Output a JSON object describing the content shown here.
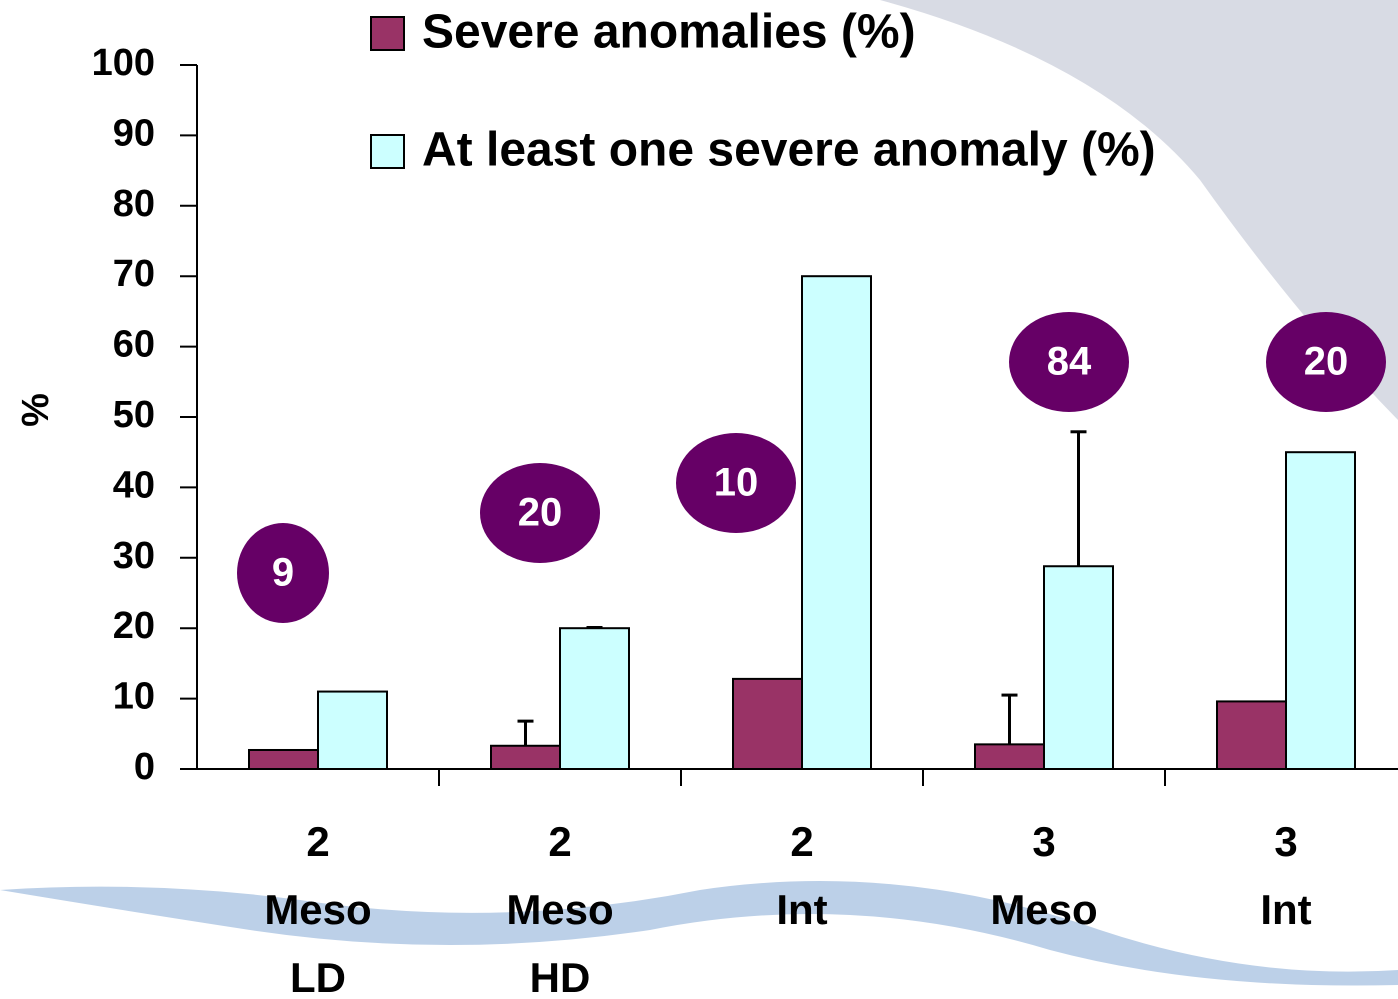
{
  "chart_data": {
    "type": "bar",
    "y_label": "%",
    "categories": [
      [
        "2",
        "Meso",
        "LD"
      ],
      [
        "2",
        "Meso",
        "HD"
      ],
      [
        "2",
        "Int"
      ],
      [
        "3",
        "Meso"
      ],
      [
        "3",
        "Int"
      ]
    ],
    "series": [
      {
        "name": "Severe anomalies (%)",
        "color": "#993366",
        "values": [
          2.7,
          3.3,
          12.8,
          3.5,
          9.6
        ],
        "errors": [
          null,
          3.5,
          null,
          7,
          null
        ]
      },
      {
        "name": "At least one severe anomaly (%)",
        "color": "#ccffff",
        "values": [
          11,
          20,
          70,
          28.8,
          45
        ],
        "errors": [
          null,
          0.1,
          null,
          19.1,
          null
        ]
      }
    ],
    "bubble_labels": [
      "9",
      "20",
      "10",
      "84",
      "20"
    ],
    "bubble_color": "#660066",
    "ylim": [
      0,
      100
    ],
    "yticks": [
      0,
      10,
      20,
      30,
      40,
      50,
      60,
      70,
      80,
      90,
      100
    ]
  }
}
